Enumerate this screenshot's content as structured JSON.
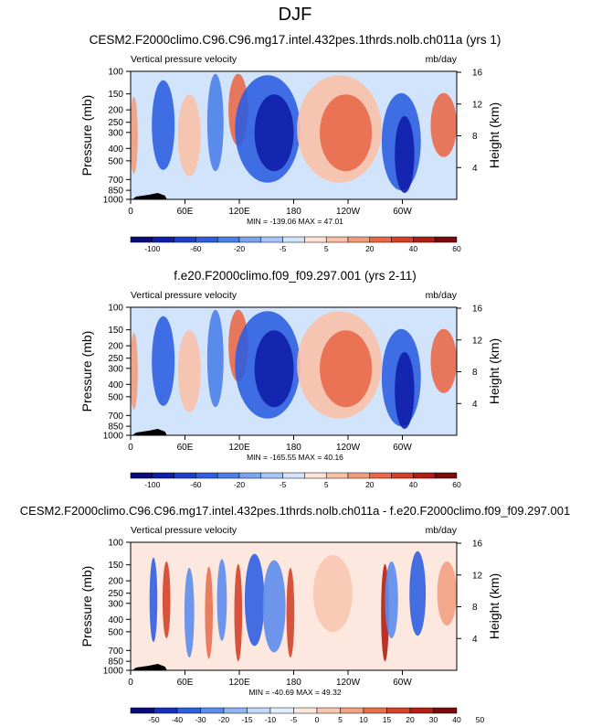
{
  "figure": {
    "title": "DJF"
  },
  "colors": {
    "panel12": [
      "#0a0a7a",
      "#0f1ea8",
      "#1f3fc9",
      "#2f5fe0",
      "#4d7fe8",
      "#7aa3f0",
      "#a8c6f7",
      "#d2e4fb",
      "#fde2d6",
      "#f8c1a8",
      "#f39c7c",
      "#e8694a",
      "#d63f28",
      "#b01e16",
      "#7d0a0a"
    ],
    "panel3": [
      "#0a0a7a",
      "#1530b8",
      "#2f5fe0",
      "#5c8cec",
      "#90b5f3",
      "#c2d9f9",
      "#e3eefc",
      "#fce8de",
      "#f8c7b0",
      "#f2a183",
      "#e7714f",
      "#d4432a",
      "#b21f15",
      "#7d0a0a"
    ]
  },
  "panels": [
    {
      "title": "CESM2.F2000climo.C96.C96.mg17.intel.432pes.1thrds.nolb.ch011a (yrs 1)",
      "left_label": "Vertical pressure velocity",
      "right_label": "mb/day",
      "minmax": "MIN = -139.06  MAX =  47.01",
      "colorbar": "panel12"
    },
    {
      "title": "f.e20.F2000climo.f09_f09.297.001 (yrs 2-11)",
      "left_label": "Vertical pressure velocity",
      "right_label": "mb/day",
      "minmax": "MIN = -165.55  MAX =  40.16",
      "colorbar": "panel12"
    },
    {
      "title": "CESM2.F2000climo.C96.C96.mg17.intel.432pes.1thrds.nolb.ch011a - f.e20.F2000climo.f09_f09.297.001",
      "left_label": "Vertical pressure velocity",
      "right_label": "mb/day",
      "minmax": "MIN = -40.69  MAX =  49.32",
      "colorbar": "panel3"
    }
  ],
  "chart_data": [
    {
      "type": "heatmap",
      "title": "CESM2.F2000climo.C96.C96.mg17.intel.432pes.1thrds.nolb.ch011a (yrs 1)",
      "xlabel": "",
      "ylabel": "Pressure (mb)",
      "ylabel_right": "Height (km)",
      "x_ticks": [
        "0",
        "60E",
        "120E",
        "180",
        "120W",
        "60W"
      ],
      "x_tick_values": [
        0,
        60,
        120,
        180,
        240,
        300
      ],
      "xlim": [
        0,
        360
      ],
      "y_ticks": [
        100,
        150,
        200,
        250,
        300,
        400,
        500,
        700,
        850,
        1000
      ],
      "ylim": [
        1000,
        100
      ],
      "y_scale": "log",
      "y_right_ticks": [
        4,
        8,
        12,
        16
      ],
      "colorbar_labels": [
        "-100",
        "-60",
        "-20",
        "-5",
        "5",
        "20",
        "40",
        "60"
      ],
      "min": -139.06,
      "max": 47.01
    },
    {
      "type": "heatmap",
      "title": "f.e20.F2000climo.f09_f09.297.001 (yrs 2-11)",
      "xlabel": "",
      "ylabel": "Pressure (mb)",
      "ylabel_right": "Height (km)",
      "x_ticks": [
        "0",
        "60E",
        "120E",
        "180",
        "120W",
        "60W"
      ],
      "x_tick_values": [
        0,
        60,
        120,
        180,
        240,
        300
      ],
      "xlim": [
        0,
        360
      ],
      "y_ticks": [
        100,
        150,
        200,
        250,
        300,
        400,
        500,
        700,
        850,
        1000
      ],
      "ylim": [
        1000,
        100
      ],
      "y_scale": "log",
      "y_right_ticks": [
        4,
        8,
        12,
        16
      ],
      "colorbar_labels": [
        "-100",
        "-60",
        "-20",
        "-5",
        "5",
        "20",
        "40",
        "60"
      ],
      "min": -165.55,
      "max": 40.16
    },
    {
      "type": "heatmap",
      "title": "CESM2.F2000climo.C96.C96.mg17.intel.432pes.1thrds.nolb.ch011a - f.e20.F2000climo.f09_f09.297.001",
      "xlabel": "",
      "ylabel": "Pressure (mb)",
      "ylabel_right": "Height (km)",
      "x_ticks": [
        "0",
        "60E",
        "120E",
        "180",
        "120W",
        "60W"
      ],
      "x_tick_values": [
        0,
        60,
        120,
        180,
        240,
        300
      ],
      "xlim": [
        0,
        360
      ],
      "y_ticks": [
        100,
        150,
        200,
        250,
        300,
        400,
        500,
        700,
        850,
        1000
      ],
      "ylim": [
        1000,
        100
      ],
      "y_scale": "log",
      "y_right_ticks": [
        4,
        8,
        12,
        16
      ],
      "colorbar_labels": [
        "-50",
        "-40",
        "-30",
        "-20",
        "-15",
        "-10",
        "-5",
        "0",
        "5",
        "10",
        "15",
        "20",
        "30",
        "40",
        "50"
      ],
      "min": -40.69,
      "max": 49.32
    }
  ]
}
